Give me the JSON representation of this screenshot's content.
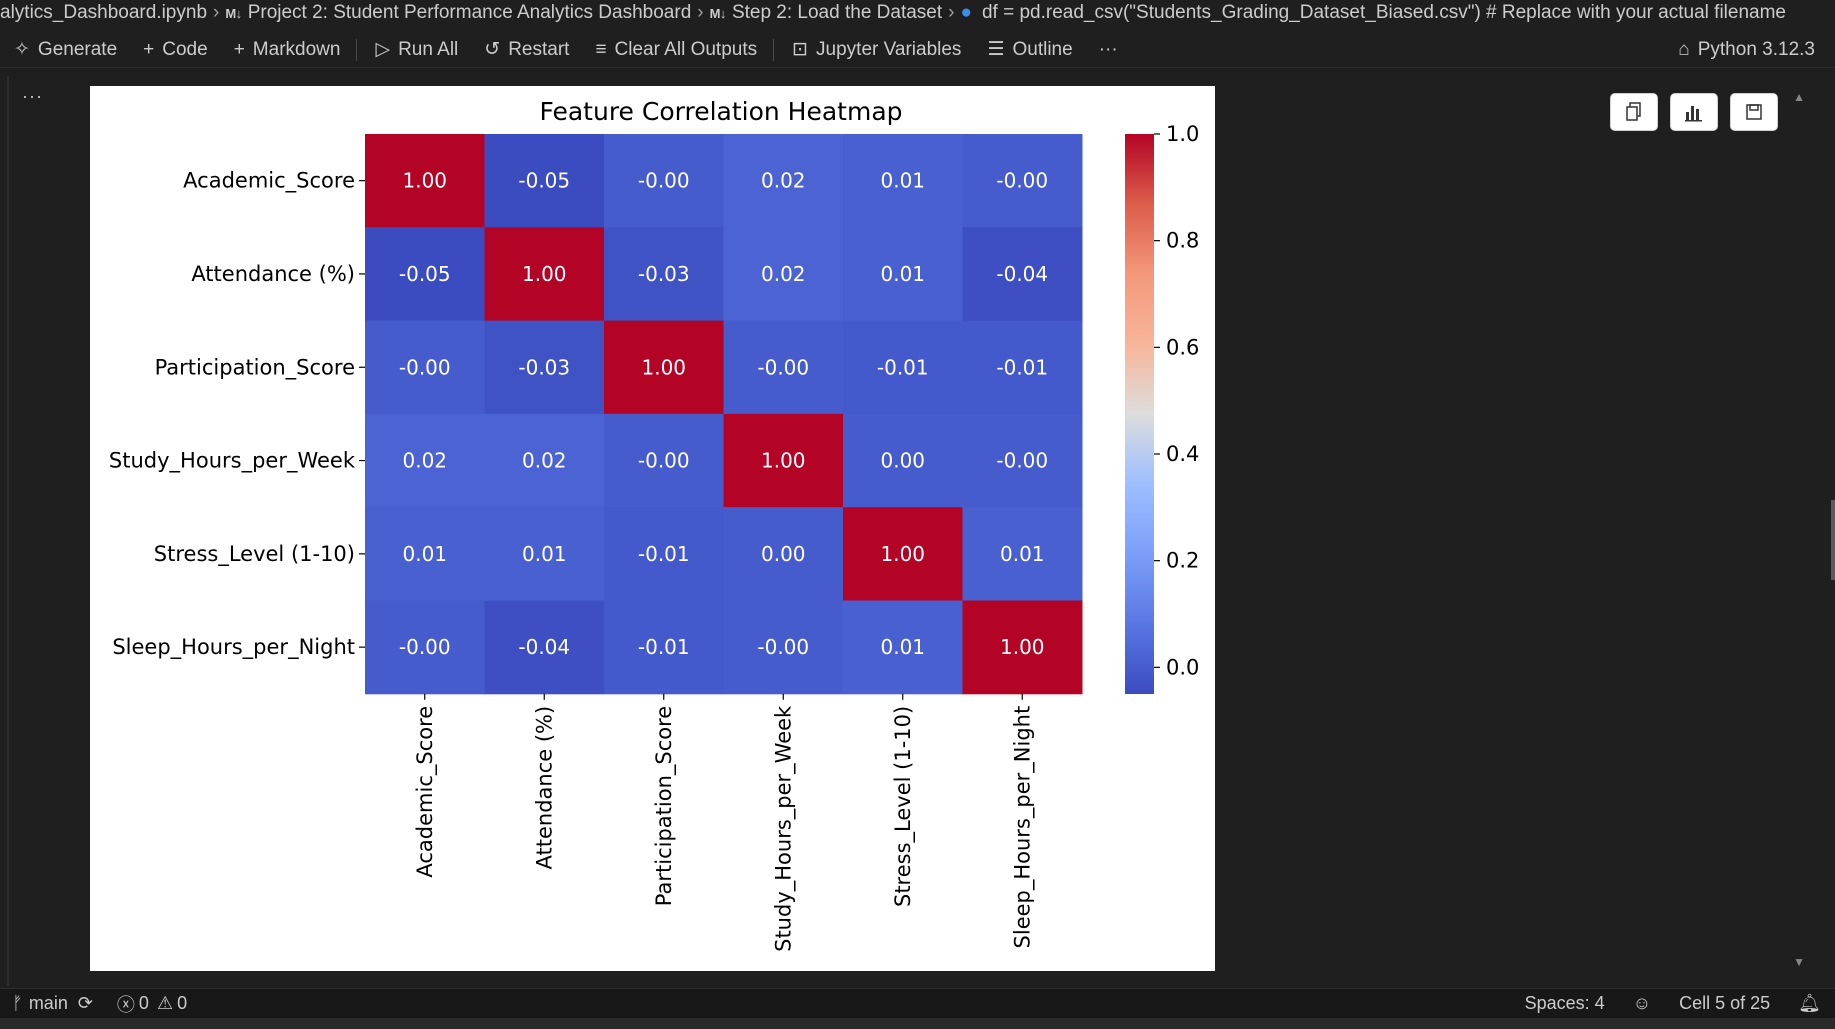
{
  "breadcrumb": {
    "file": "alytics_Dashboard.ipynb",
    "md_tag": "M↓",
    "section1": "Project 2: Student Performance Analytics Dashboard",
    "section2": "Step 2: Load the Dataset",
    "code": "df = pd.read_csv(\"Students_Grading_Dataset_Biased.csv\")  # Replace with your actual filename"
  },
  "toolbar": {
    "generate": "Generate",
    "code": "Code",
    "markdown": "Markdown",
    "run_all": "Run All",
    "restart": "Restart",
    "clear_outputs": "Clear All Outputs",
    "variables": "Jupyter Variables",
    "outline": "Outline",
    "more": "···",
    "kernel": "Python 3.12.3"
  },
  "cell": {
    "more": "···"
  },
  "statusbar": {
    "branch": "main",
    "errors": "0",
    "warnings": "0",
    "spaces": "Spaces: 4",
    "cell_position": "Cell 5 of 25"
  },
  "colors": {
    "cmap_low": "#3b4cc0",
    "cmap_mid": "#dddddd",
    "cmap_high": "#b40426"
  },
  "chart_data": {
    "type": "heatmap",
    "title": "Feature Correlation Heatmap",
    "rows": [
      "Academic_Score",
      "Attendance (%)",
      "Participation_Score",
      "Study_Hours_per_Week",
      "Stress_Level (1-10)",
      "Sleep_Hours_per_Night"
    ],
    "cols": [
      "Academic_Score",
      "Attendance (%)",
      "Participation_Score",
      "Study_Hours_per_Week",
      "Stress_Level (1-10)",
      "Sleep_Hours_per_Night"
    ],
    "values": [
      [
        1.0,
        -0.05,
        -0.0,
        0.02,
        0.01,
        -0.0
      ],
      [
        -0.05,
        1.0,
        -0.03,
        0.02,
        0.01,
        -0.04
      ],
      [
        -0.0,
        -0.03,
        1.0,
        -0.0,
        -0.01,
        -0.01
      ],
      [
        0.02,
        0.02,
        -0.0,
        1.0,
        0.0,
        -0.0
      ],
      [
        0.01,
        0.01,
        -0.01,
        0.0,
        1.0,
        0.01
      ],
      [
        -0.0,
        -0.04,
        -0.01,
        -0.0,
        0.01,
        1.0
      ]
    ],
    "cell_labels": [
      [
        "1.00",
        "-0.05",
        "-0.00",
        "0.02",
        "0.01",
        "-0.00"
      ],
      [
        "-0.05",
        "1.00",
        "-0.03",
        "0.02",
        "0.01",
        "-0.04"
      ],
      [
        "-0.00",
        "-0.03",
        "1.00",
        "-0.00",
        "-0.01",
        "-0.01"
      ],
      [
        "0.02",
        "0.02",
        "-0.00",
        "1.00",
        "0.00",
        "-0.00"
      ],
      [
        "0.01",
        "0.01",
        "-0.01",
        "0.00",
        "1.00",
        "0.01"
      ],
      [
        "-0.00",
        "-0.04",
        "-0.01",
        "-0.00",
        "0.01",
        "1.00"
      ]
    ],
    "vmin": -0.05,
    "vmax": 1.0,
    "colorbar_ticks": [
      "0.0",
      "0.2",
      "0.4",
      "0.6",
      "0.8",
      "1.0"
    ],
    "colorbar_tick_values": [
      0.0,
      0.2,
      0.4,
      0.6,
      0.8,
      1.0
    ],
    "colormap": "coolwarm"
  }
}
